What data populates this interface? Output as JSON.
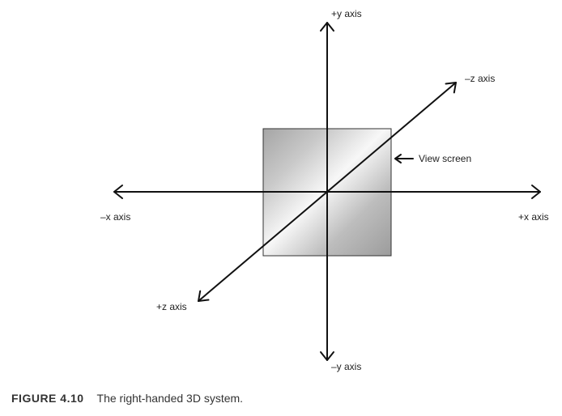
{
  "diagram": {
    "axes": {
      "y_pos": "+y axis",
      "y_neg": "–y axis",
      "x_pos": "+x axis",
      "x_neg": "–x axis",
      "z_neg": "–z axis",
      "z_pos": "+z axis"
    },
    "view_screen_label": "View screen"
  },
  "caption": {
    "label": "FIGURE 4.10",
    "text": "The right-handed 3D system."
  },
  "colors": {
    "line": "#111111",
    "screen_dark": "#9a9a9a",
    "screen_light": "#f4f4f4"
  }
}
